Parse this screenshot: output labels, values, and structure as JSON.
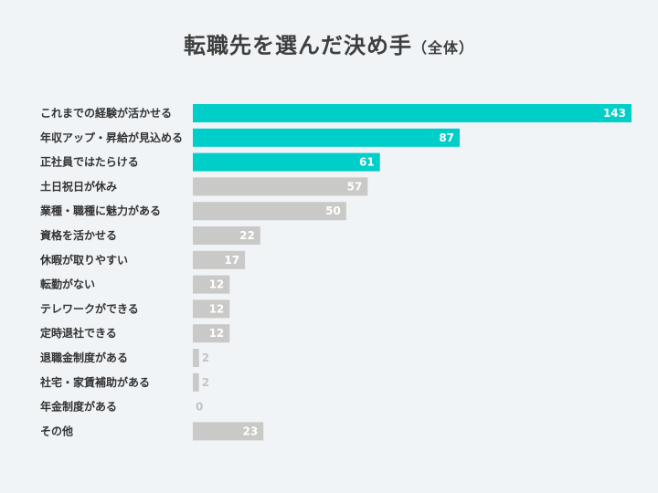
{
  "title": "転職先を選んだ決め手",
  "subtitle": "（全体）",
  "chart_data": {
    "type": "bar",
    "orientation": "horizontal",
    "categories": [
      "これまでの経験が活かせる",
      "年収アップ・昇給が見込める",
      "正社員ではたらける",
      "土日祝日が休み",
      "業種・職種に魅力がある",
      "資格を活かせる",
      "休暇が取りやすい",
      "転勤がない",
      "テレワークができる",
      "定時退社できる",
      "退職金制度がある",
      "社宅・家賃補助がある",
      "年金制度がある",
      "その他"
    ],
    "values": [
      143,
      87,
      61,
      57,
      50,
      22,
      17,
      12,
      12,
      12,
      2,
      2,
      0,
      23
    ],
    "highlight_count": 3,
    "colors": {
      "highlight": "#00cec9",
      "normal": "#c9c9c7",
      "label_in": "#ffffff",
      "label_out": "#c3c3c3"
    },
    "xlim": [
      0,
      143
    ]
  }
}
